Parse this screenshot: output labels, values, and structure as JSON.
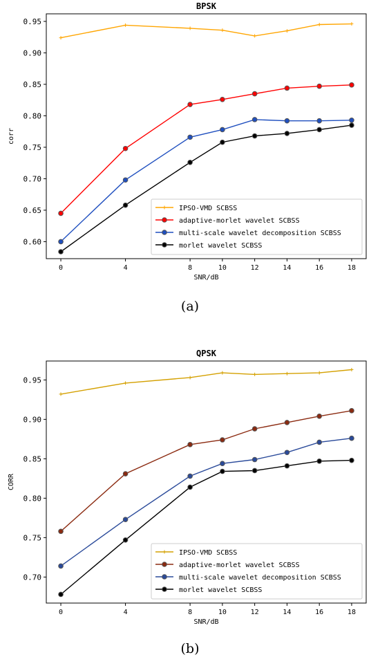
{
  "chart_data": [
    {
      "type": "line",
      "title": "BPSK",
      "xlabel": "SNR/dB",
      "ylabel": "corr",
      "caption": "(a)",
      "x": [
        0,
        4,
        8,
        10,
        12,
        14,
        16,
        18
      ],
      "xticks": [
        "0",
        "4",
        "8",
        "10",
        "12",
        "14",
        "16",
        "18"
      ],
      "ylim": [
        0.573,
        0.962
      ],
      "yticks": [
        "0.60",
        "0.65",
        "0.70",
        "0.75",
        "0.80",
        "0.85",
        "0.90",
        "0.95"
      ],
      "yticks_values": [
        0.6,
        0.65,
        0.7,
        0.75,
        0.8,
        0.85,
        0.9,
        0.95
      ],
      "grid": false,
      "legend_position": "lower-right",
      "series": [
        {
          "name": "IPSO-VMD SCBSS",
          "color": "#ffa500",
          "marker": "plus",
          "values": [
            0.924,
            0.944,
            0.939,
            0.936,
            0.927,
            0.935,
            0.945,
            0.946
          ]
        },
        {
          "name": "adaptive-morlet wavelet SCBSS",
          "color": "#ff0000",
          "marker": "circle",
          "values": [
            0.645,
            0.748,
            0.818,
            0.826,
            0.835,
            0.844,
            0.847,
            0.849
          ]
        },
        {
          "name": "multi-scale wavelet decomposition SCBSS",
          "color": "#1f4fbf",
          "marker": "circle",
          "values": [
            0.6,
            0.698,
            0.766,
            0.778,
            0.794,
            0.792,
            0.792,
            0.793
          ]
        },
        {
          "name": "morlet wavelet SCBSS",
          "color": "#000000",
          "marker": "circle",
          "values": [
            0.584,
            0.658,
            0.726,
            0.758,
            0.768,
            0.772,
            0.778,
            0.785
          ]
        }
      ]
    },
    {
      "type": "line",
      "title": "QPSK",
      "xlabel": "SNR/dB",
      "ylabel": "CORR",
      "caption": "(b)",
      "x": [
        0,
        4,
        8,
        10,
        12,
        14,
        16,
        18
      ],
      "xticks": [
        "0",
        "4",
        "8",
        "10",
        "12",
        "14",
        "16",
        "18"
      ],
      "ylim": [
        0.667,
        0.974
      ],
      "yticks": [
        "0.70",
        "0.75",
        "0.80",
        "0.85",
        "0.90",
        "0.95"
      ],
      "yticks_values": [
        0.7,
        0.75,
        0.8,
        0.85,
        0.9,
        0.95
      ],
      "grid": false,
      "legend_position": "lower-right",
      "series": [
        {
          "name": "IPSO-VMD SCBSS",
          "color": "#d4a000",
          "marker": "plus",
          "values": [
            0.932,
            0.946,
            0.953,
            0.959,
            0.957,
            0.958,
            0.959,
            0.963
          ]
        },
        {
          "name": "adaptive-morlet wavelet SCBSS",
          "color": "#8b2a10",
          "marker": "circle",
          "values": [
            0.758,
            0.831,
            0.868,
            0.874,
            0.888,
            0.896,
            0.904,
            0.911
          ]
        },
        {
          "name": "multi-scale wavelet decomposition SCBSS",
          "color": "#2a4a9a",
          "marker": "circle",
          "values": [
            0.714,
            0.773,
            0.828,
            0.844,
            0.849,
            0.858,
            0.871,
            0.876
          ]
        },
        {
          "name": "morlet wavelet SCBSS",
          "color": "#000000",
          "marker": "circle",
          "values": [
            0.678,
            0.747,
            0.814,
            0.834,
            0.835,
            0.841,
            0.847,
            0.848
          ]
        }
      ]
    }
  ]
}
